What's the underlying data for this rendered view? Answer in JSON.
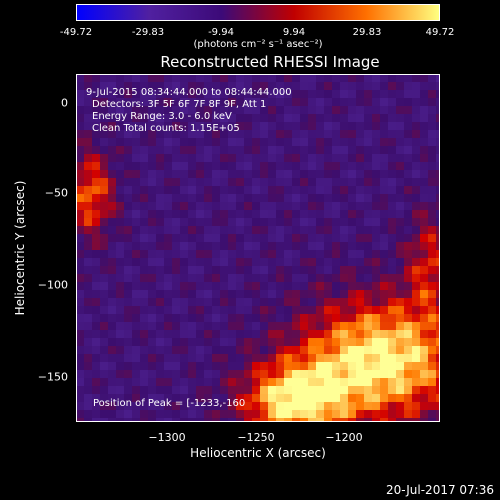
{
  "colorbar": {
    "ticks": [
      "-49.72",
      "-29.83",
      "-9.94",
      "9.94",
      "29.83",
      "49.72"
    ],
    "units": "(photons cm⁻² s⁻¹ asec⁻²)"
  },
  "chart_data": {
    "type": "heatmap",
    "title": "Reconstructed RHESSI Image",
    "xlabel": "Heliocentric X (arcsec)",
    "ylabel": "Heliocentric Y (arcsec)",
    "xlim": [
      -1350,
      -1165
    ],
    "ylim": [
      -175,
      12
    ],
    "x_ticks": [
      "−1300",
      "−1250",
      "−1200"
    ],
    "x_tick_values": [
      -1300,
      -1250,
      -1200
    ],
    "y_ticks": [
      "0",
      "−50",
      "−100",
      "−150"
    ],
    "y_tick_values": [
      0,
      -50,
      -100,
      -150
    ],
    "color_range": [
      -49.72,
      49.72
    ],
    "colormap": [
      "#0000ff",
      "#5020a0",
      "#3c0a78",
      "#c00000",
      "#ff7000",
      "#ffff80"
    ],
    "peak": [
      -1233,
      -160
    ],
    "annotations": [
      "9-Jul-2015 08:34:44.000 to 08:44:44.000",
      "Detectors: 3F 5F 6F 7F 8F 9F, Att 1",
      "Energy Range: 3.0 - 6.0 keV",
      "Clean    Total counts: 1.15E+05",
      "Position of Peak = [-1233,-160"
    ]
  },
  "footer": "20-Jul-2017 07:36"
}
